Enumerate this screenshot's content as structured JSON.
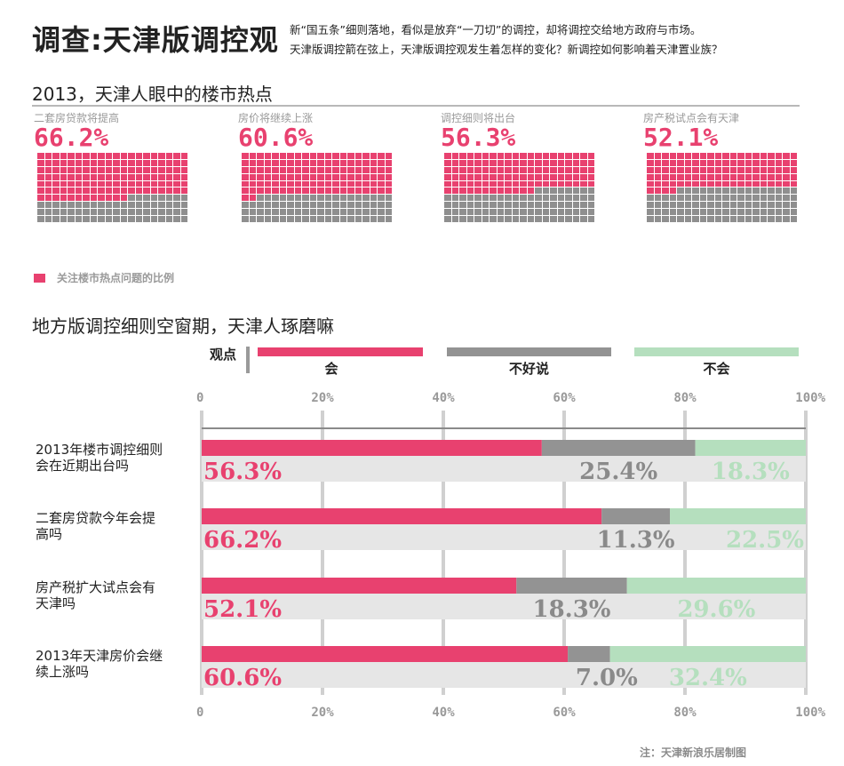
{
  "header": {
    "title": "调查:天津版调控观",
    "intro_line1": "新“国五条”细则落地，看似是放弃“一刀切”的调控，却将调控交给地方政府与市场。",
    "intro_line2": "天津版调控箭在弦上，天津版调控观发生着怎样的变化？新调控如何影响着天津置业族？"
  },
  "section1": {
    "title": "2013，天津人眼中的楼市热点",
    "legend": "关注楼市热点问题的比例",
    "waffles": [
      {
        "label": "二套房贷款将提高",
        "pct_text": "66.2%",
        "value": 66.2
      },
      {
        "label": "房价将继续上涨",
        "pct_text": "60.6%",
        "value": 60.6
      },
      {
        "label": "调控细则将出台",
        "pct_text": "56.3%",
        "value": 56.3
      },
      {
        "label": "房产税试点会有天津",
        "pct_text": "52.1%",
        "value": 52.1
      }
    ]
  },
  "section2": {
    "title": "地方版调控细则空窗期，天津人琢磨嘛"
  },
  "chart_data": {
    "type": "bar",
    "stacked": true,
    "orientation": "horizontal",
    "legend_title": "观点",
    "xlim": [
      0,
      100
    ],
    "xticks": [
      "0",
      "20%",
      "40%",
      "60%",
      "80%",
      "100%"
    ],
    "categories": [
      "2013年楼市调控细则会在近期出台吗",
      "二套房贷款今年会提高吗",
      "房产税扩大试点会有天津吗",
      "2013年天津房价会继续上涨吗"
    ],
    "category_lines": [
      [
        "2013年楼市调控细则",
        "会在近期出台吗"
      ],
      [
        "二套房贷款今年会提",
        "高吗"
      ],
      [
        "房产税扩大试点会有",
        "天津吗"
      ],
      [
        "2013年天津房价会继",
        "续上涨吗"
      ]
    ],
    "series": [
      {
        "name": "会",
        "color": "#e8416f",
        "values": [
          56.3,
          66.2,
          52.1,
          60.6
        ],
        "labels": [
          "56.3%",
          "66.2%",
          "52.1%",
          "60.6%"
        ]
      },
      {
        "name": "不好说",
        "color": "#939393",
        "values": [
          25.4,
          11.3,
          18.3,
          7.0
        ],
        "labels": [
          "25.4%",
          "11.3%",
          "18.3%",
          "7.0%"
        ]
      },
      {
        "name": "不会",
        "color": "#b5dfbe",
        "values": [
          18.3,
          22.5,
          29.6,
          32.4
        ],
        "labels": [
          "18.3%",
          "22.5%",
          "29.6%",
          "32.4%"
        ]
      }
    ]
  },
  "credit": "注：天津新浪乐居制图"
}
